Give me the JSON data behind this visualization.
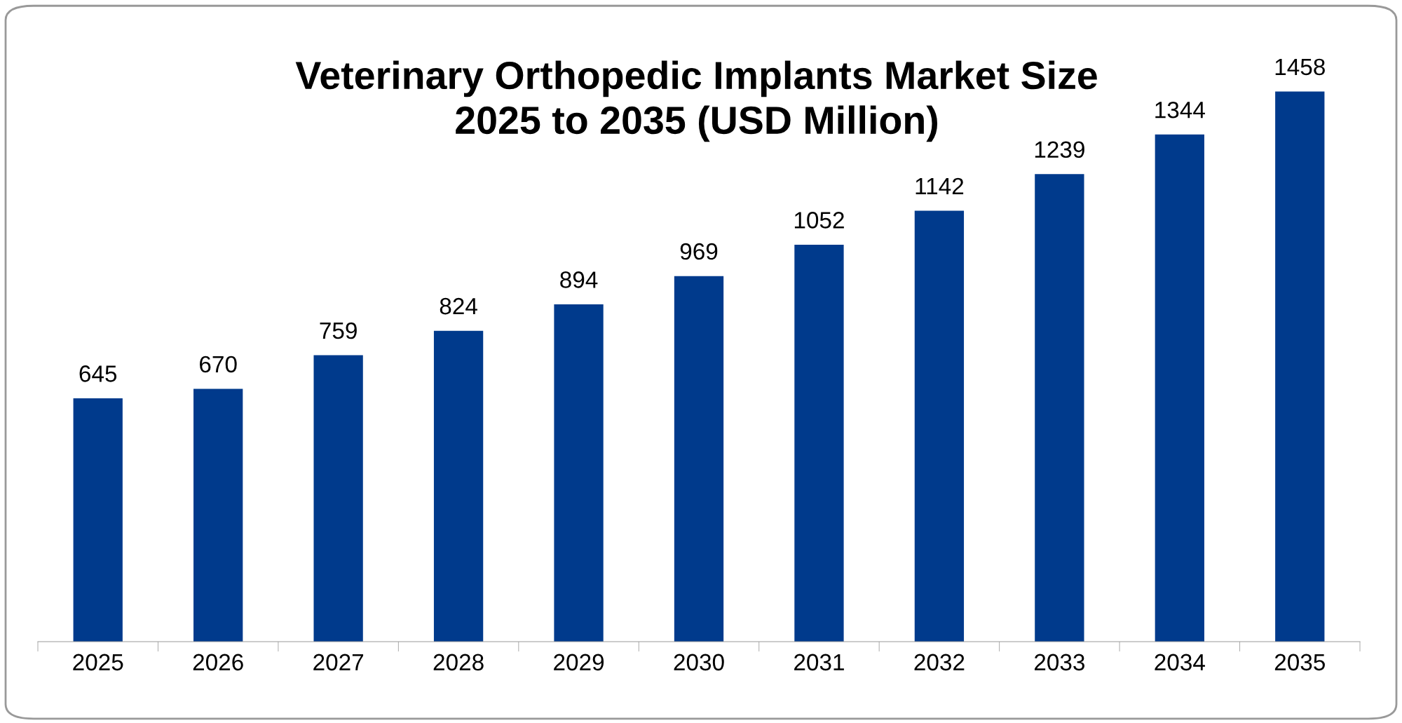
{
  "chart_data": {
    "type": "bar",
    "title": "Veterinary Orthopedic Implants Market Size\n2025 to 2035 (USD Million)",
    "categories": [
      "2025",
      "2026",
      "2027",
      "2028",
      "2029",
      "2030",
      "2031",
      "2032",
      "2033",
      "2034",
      "2035"
    ],
    "values": [
      645,
      670,
      759,
      824,
      894,
      969,
      1052,
      1142,
      1239,
      1344,
      1458
    ],
    "color": "#003a8c",
    "data_labels": true,
    "grid": false,
    "legend": false,
    "tick_labels": "x"
  }
}
